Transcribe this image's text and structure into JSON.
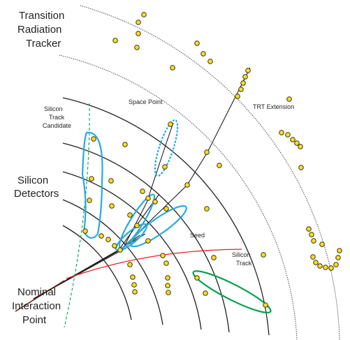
{
  "labels": {
    "trt": [
      "Transition",
      "Radiation",
      "Tracker"
    ],
    "silicon_detectors": [
      "Silicon",
      "Detectors"
    ],
    "nominal_ip": [
      "Nominal",
      "Interaction",
      "Point"
    ],
    "silicon_track_candidate": [
      "Silicon",
      "Track",
      "Candidate"
    ],
    "space_point": "Space Point",
    "trt_extension": "TRT Extension",
    "seed": "Seed",
    "silicon_track": [
      "Silicon",
      "Track"
    ]
  },
  "colors": {
    "hit_fill": "#ffde17",
    "outline": "#231f20",
    "seed_highlight": "#27aae1",
    "silicon_track_highlight": "#00a14b",
    "red_track": "#ed1c24",
    "candidate_dashed": "#00a14b"
  }
}
